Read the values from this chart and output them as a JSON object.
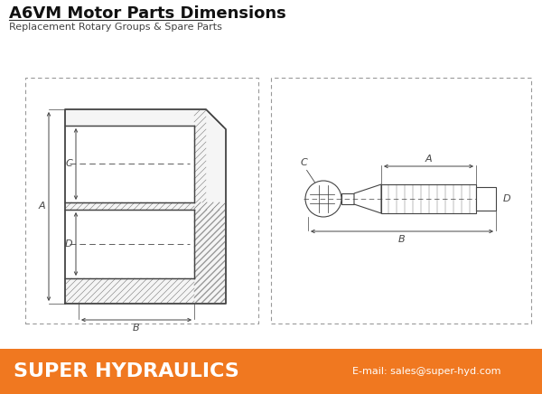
{
  "title": "A6VM Motor Parts Dimensions",
  "subtitle": "Replacement Rotary Groups & Spare Parts",
  "footer_text": "SUPER HYDRAULICS",
  "footer_email": "E-mail: sales@super-hyd.com",
  "footer_bg": "#F07820",
  "footer_text_color": "#FFFFFF",
  "bg_color": "#FFFFFF",
  "border_color": "#999999",
  "drawing_color": "#444444",
  "title_fontsize": 13,
  "subtitle_fontsize": 8,
  "footer_main_fontsize": 16,
  "footer_email_fontsize": 8,
  "label_fontsize": 8
}
